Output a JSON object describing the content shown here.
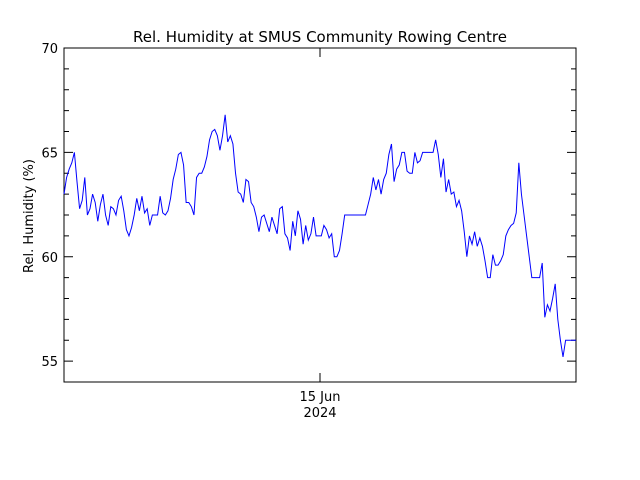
{
  "chart_data": {
    "type": "line",
    "title": "Rel. Humidity at SMUS Community Rowing Centre",
    "xlabel": "",
    "ylabel": "Rel. Humidity (%)",
    "ylim": [
      54,
      70
    ],
    "y_ticks": [
      55,
      60,
      65,
      70
    ],
    "y_minor_step": 1,
    "x_tick_label": {
      "line1": "15 Jun",
      "line2": "2024"
    },
    "grid": false,
    "legend": "none",
    "line_color": "#0000ff",
    "series": [
      {
        "values": [
          63,
          63.8,
          64.2,
          64.5,
          65,
          63.6,
          62.3,
          62.7,
          63.8,
          62,
          62.3,
          63,
          62.6,
          61.7,
          62.5,
          63,
          62,
          61.5,
          62.4,
          62.3,
          62,
          62.7,
          62.9,
          62.2,
          61.3,
          61,
          61.4,
          62,
          62.8,
          62.2,
          62.9,
          62.1,
          62.3,
          61.5,
          62,
          62,
          62,
          62.9,
          62.1,
          62,
          62.2,
          62.8,
          63.7,
          64.2,
          64.9,
          65,
          64.4,
          62.6,
          62.6,
          62.4,
          62,
          63.8,
          64,
          64,
          64.3,
          64.8,
          65.6,
          66,
          66.1,
          65.8,
          65.1,
          65.8,
          66.8,
          65.5,
          65.8,
          65.4,
          64,
          63.1,
          63,
          62.6,
          63.7,
          63.6,
          62.6,
          62.4,
          61.9,
          61.2,
          61.9,
          62,
          61.6,
          61.2,
          61.9,
          61.5,
          61.1,
          62.3,
          62.4,
          61.1,
          60.9,
          60.3,
          61.7,
          61,
          62.2,
          61.8,
          60.6,
          61.5,
          60.8,
          61.1,
          61.9,
          61,
          61,
          61,
          61.5,
          61.3,
          60.9,
          61.1,
          60,
          60,
          60.3,
          61.1,
          62,
          62,
          62,
          62,
          62,
          62,
          62,
          62,
          62,
          62.5,
          63,
          63.8,
          63.2,
          63.7,
          63,
          63.7,
          64,
          64.9,
          65.4,
          63.6,
          64.2,
          64.4,
          65,
          65,
          64.1,
          64,
          64,
          65,
          64.5,
          64.6,
          65,
          65,
          65,
          65,
          65,
          65.6,
          64.9,
          63.8,
          64.7,
          63.1,
          63.7,
          63,
          63.1,
          62.4,
          62.7,
          62.2,
          61.2,
          60,
          61,
          60.6,
          61.2,
          60.5,
          60.9,
          60.5,
          59.8,
          59,
          59,
          60.1,
          59.6,
          59.6,
          59.8,
          60.1,
          61,
          61.3,
          61.5,
          61.6,
          62.1,
          64.5,
          63,
          62,
          61,
          60,
          59,
          59,
          59,
          59,
          59.7,
          57.1,
          57.7,
          57.4,
          58,
          58.7,
          57,
          56,
          55.2,
          56,
          56,
          56,
          56,
          56
        ]
      }
    ]
  }
}
